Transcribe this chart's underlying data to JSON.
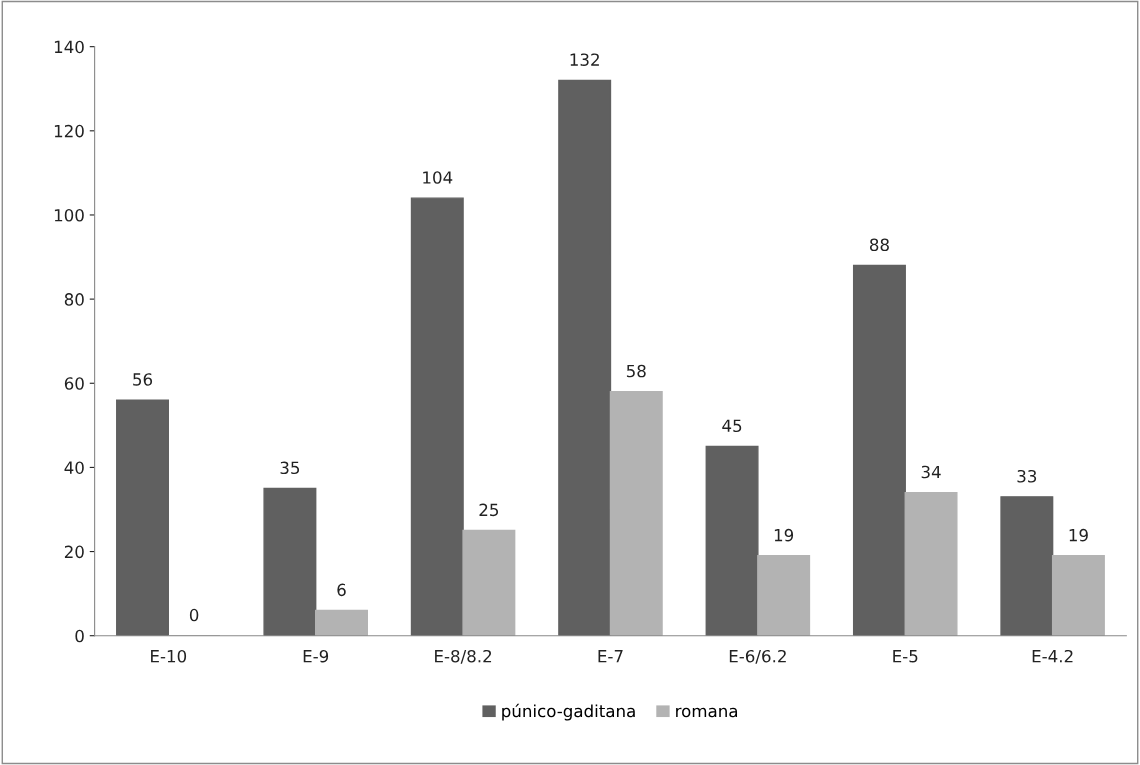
{
  "chart_data": {
    "type": "bar",
    "categories": [
      "E-10",
      "E-9",
      "E-8/8.2",
      "E-7",
      "E-6/6.2",
      "E-5",
      "E-4.2"
    ],
    "series": [
      {
        "name": "púnico-gaditana",
        "color": "#606060",
        "values": [
          56,
          35,
          104,
          132,
          45,
          88,
          33
        ]
      },
      {
        "name": "romana",
        "color": "#b3b3b3",
        "values": [
          0,
          6,
          25,
          58,
          19,
          34,
          19
        ]
      }
    ],
    "ylim": [
      0,
      140
    ],
    "yticks": [
      0,
      20,
      40,
      60,
      80,
      100,
      120,
      140
    ],
    "grid": false,
    "legend": "bottom",
    "data_labels": true
  }
}
